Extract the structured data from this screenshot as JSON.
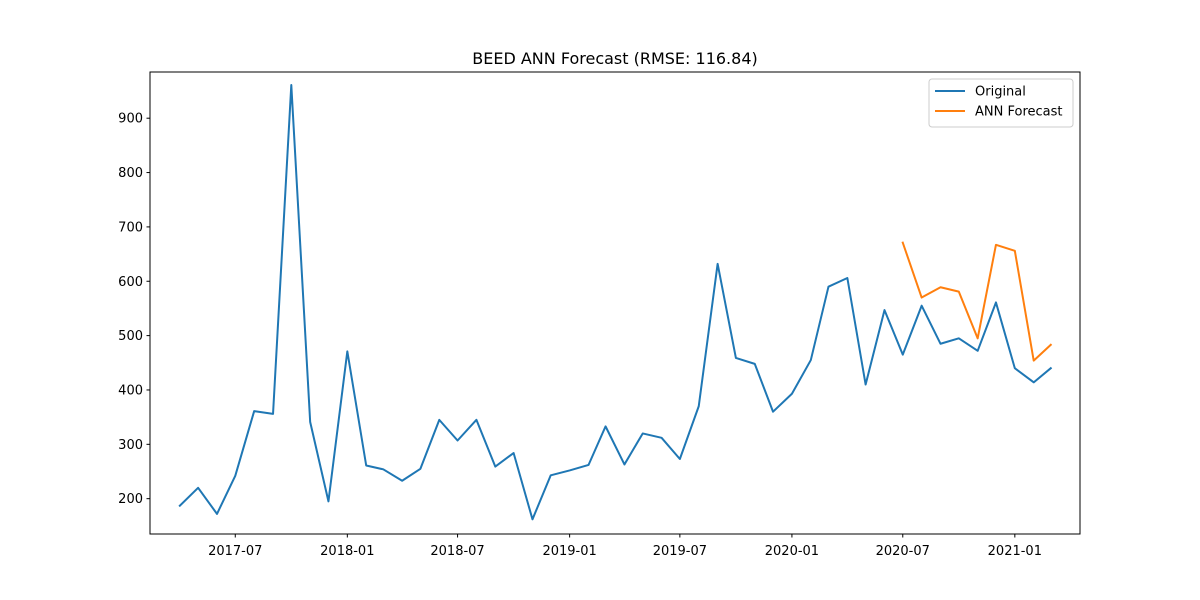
{
  "chart_data": {
    "type": "line",
    "title": "BEED ANN Forecast (RMSE: 116.84)",
    "xlabel": "",
    "ylabel": "",
    "xlim": [
      "2017-02-11",
      "2021-04-18"
    ],
    "ylim": [
      135,
      985
    ],
    "x_ticks": [
      {
        "date": "2017-07-01",
        "label": "2017-07"
      },
      {
        "date": "2018-01-01",
        "label": "2018-01"
      },
      {
        "date": "2018-07-01",
        "label": "2018-07"
      },
      {
        "date": "2019-01-01",
        "label": "2019-01"
      },
      {
        "date": "2019-07-01",
        "label": "2019-07"
      },
      {
        "date": "2020-01-01",
        "label": "2020-01"
      },
      {
        "date": "2020-07-01",
        "label": "2020-07"
      },
      {
        "date": "2021-01-01",
        "label": "2021-01"
      }
    ],
    "y_ticks": [
      200,
      300,
      400,
      500,
      600,
      700,
      800,
      900
    ],
    "grid": false,
    "legend_position": "top-right",
    "series": [
      {
        "name": "Original",
        "color": "#1f77b4",
        "points": [
          [
            "2017-04-01",
            187
          ],
          [
            "2017-05-01",
            220
          ],
          [
            "2017-06-01",
            172
          ],
          [
            "2017-07-01",
            242
          ],
          [
            "2017-08-01",
            361
          ],
          [
            "2017-09-01",
            356
          ],
          [
            "2017-10-01",
            961
          ],
          [
            "2017-11-01",
            341
          ],
          [
            "2017-12-01",
            195
          ],
          [
            "2018-01-01",
            471
          ],
          [
            "2018-02-01",
            261
          ],
          [
            "2018-03-01",
            254
          ],
          [
            "2018-04-01",
            233
          ],
          [
            "2018-05-01",
            255
          ],
          [
            "2018-06-01",
            345
          ],
          [
            "2018-07-01",
            307
          ],
          [
            "2018-08-01",
            345
          ],
          [
            "2018-09-01",
            259
          ],
          [
            "2018-10-01",
            284
          ],
          [
            "2018-11-01",
            162
          ],
          [
            "2018-12-01",
            243
          ],
          [
            "2019-01-01",
            252
          ],
          [
            "2019-02-01",
            262
          ],
          [
            "2019-03-01",
            333
          ],
          [
            "2019-04-01",
            263
          ],
          [
            "2019-05-01",
            320
          ],
          [
            "2019-06-01",
            312
          ],
          [
            "2019-07-01",
            273
          ],
          [
            "2019-08-01",
            370
          ],
          [
            "2019-09-01",
            632
          ],
          [
            "2019-10-01",
            459
          ],
          [
            "2019-11-01",
            448
          ],
          [
            "2019-12-01",
            360
          ],
          [
            "2020-01-01",
            393
          ],
          [
            "2020-02-01",
            455
          ],
          [
            "2020-03-01",
            590
          ],
          [
            "2020-04-01",
            606
          ],
          [
            "2020-05-01",
            410
          ],
          [
            "2020-06-01",
            547
          ],
          [
            "2020-07-01",
            465
          ],
          [
            "2020-08-01",
            555
          ],
          [
            "2020-09-01",
            485
          ],
          [
            "2020-10-01",
            495
          ],
          [
            "2020-11-01",
            472
          ],
          [
            "2020-12-01",
            561
          ],
          [
            "2021-01-01",
            440
          ],
          [
            "2021-02-01",
            414
          ],
          [
            "2021-03-01",
            440
          ]
        ]
      },
      {
        "name": "ANN Forecast",
        "color": "#ff7f0e",
        "points": [
          [
            "2020-07-01",
            671
          ],
          [
            "2020-08-01",
            570
          ],
          [
            "2020-09-01",
            589
          ],
          [
            "2020-10-01",
            581
          ],
          [
            "2020-11-01",
            495
          ],
          [
            "2020-12-01",
            667
          ],
          [
            "2021-01-01",
            656
          ],
          [
            "2021-02-01",
            454
          ],
          [
            "2021-03-01",
            483
          ]
        ]
      }
    ]
  }
}
